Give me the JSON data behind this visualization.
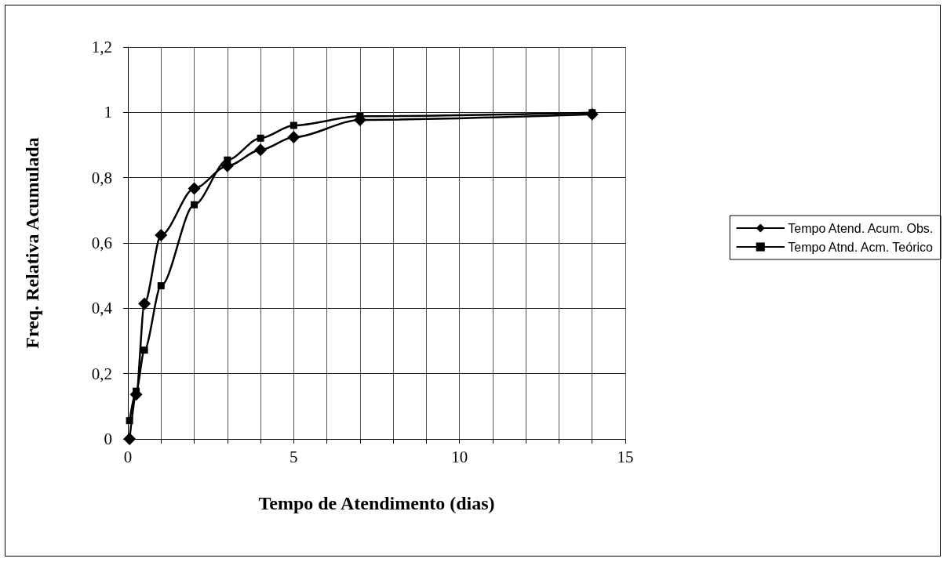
{
  "chart_data": {
    "type": "line",
    "xlabel": "Tempo de Atendimento (dias)",
    "ylabel": "Freq. Relativa Acumulada",
    "xlim": [
      0,
      15
    ],
    "xticks": [
      0,
      {
        "value": 1,
        "label": null
      },
      {
        "value": 2,
        "label": null
      },
      {
        "value": 3,
        "label": null
      },
      {
        "value": 4,
        "label": null
      },
      5,
      {
        "value": 6,
        "label": null
      },
      {
        "value": 7,
        "label": null
      },
      {
        "value": 8,
        "label": null
      },
      {
        "value": 9,
        "label": null
      },
      10,
      {
        "value": 11,
        "label": null
      },
      {
        "value": 12,
        "label": null
      },
      {
        "value": 13,
        "label": null
      },
      {
        "value": 14,
        "label": null
      },
      15
    ],
    "ylim": [
      0,
      1.2
    ],
    "yticks": [
      0,
      {
        "value": 0.2,
        "label": "0,2"
      },
      {
        "value": 0.4,
        "label": "0,4"
      },
      {
        "value": 0.6,
        "label": "0,6"
      },
      {
        "value": 0.8,
        "label": "0,8"
      },
      1,
      {
        "value": 1.2,
        "label": "1,2"
      }
    ],
    "grid": true,
    "legend": "right",
    "line_style": "solid",
    "series": [
      {
        "name": "Tempo Atend. Acum. Obs.",
        "color": "#000000",
        "marker": "diamond",
        "x": [
          0.05,
          0.25,
          0.5,
          1,
          2,
          3,
          4,
          5,
          7,
          14
        ],
        "values": [
          0,
          0.136,
          0.414,
          0.624,
          0.767,
          0.836,
          0.885,
          0.924,
          0.977,
          0.994
        ]
      },
      {
        "name": "Tempo Atnd. Acm. Teórico",
        "color": "#000000",
        "marker": "square",
        "x": [
          0.05,
          0.25,
          0.5,
          1,
          2,
          3,
          4,
          5,
          7,
          14
        ],
        "values": [
          0.056,
          0.146,
          0.272,
          0.469,
          0.717,
          0.854,
          0.921,
          0.96,
          0.988,
          0.999
        ]
      }
    ]
  }
}
